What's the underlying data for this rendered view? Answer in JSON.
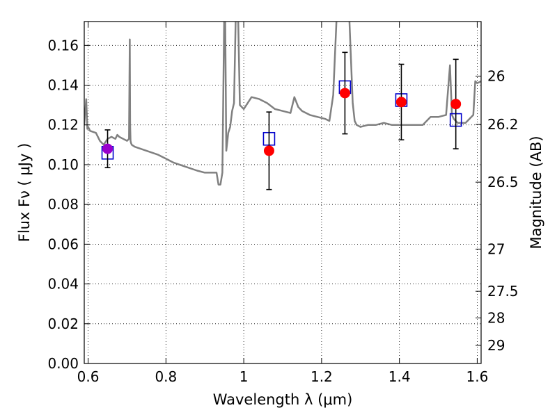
{
  "chart_data": {
    "type": "scatter",
    "xlabel": "Wavelength  λ (μm)",
    "ylabel": "Flux  Fν  ( μJy )",
    "y2label": "Magnitude (AB)",
    "xlim": [
      0.59,
      1.61
    ],
    "ylim": [
      0.0,
      0.172
    ],
    "x_ticks": [
      0.6,
      0.8,
      1.0,
      1.2,
      1.4,
      1.6
    ],
    "x_tick_labels": [
      "0.6",
      "0.8",
      "1",
      "1.2",
      "1.4",
      "1.6"
    ],
    "y_ticks": [
      0.0,
      0.02,
      0.04,
      0.06,
      0.08,
      0.1,
      0.12,
      0.14,
      0.16
    ],
    "y_tick_labels": [
      "0.00",
      "0.02",
      "0.04",
      "0.06",
      "0.08",
      "0.10",
      "0.12",
      "0.14",
      "0.16"
    ],
    "y2_ticks": [
      26,
      26.2,
      26.5,
      27,
      27.5,
      28,
      29
    ],
    "y2_tick_labels": [
      "26",
      "26.2",
      "26.5",
      "27",
      "27.5",
      "28",
      "29"
    ],
    "grid": true,
    "colors": {
      "model": "#808080",
      "observed": "#ff0000",
      "synthetic": "#0000cc",
      "errorbar": "#000000",
      "overlap": "#9900cc"
    },
    "series": [
      {
        "style": "line",
        "x": [
          0.59,
          0.595,
          0.598,
          0.6,
          0.605,
          0.62,
          0.63,
          0.64,
          0.65,
          0.66,
          0.67,
          0.675,
          0.68,
          0.69,
          0.7,
          0.705,
          0.707,
          0.708,
          0.709,
          0.71,
          0.712,
          0.72,
          0.75,
          0.78,
          0.8,
          0.82,
          0.85,
          0.88,
          0.9,
          0.92,
          0.93,
          0.935,
          0.94,
          0.945,
          0.95,
          0.952,
          0.955,
          0.958,
          0.96,
          0.965,
          0.97,
          0.975,
          0.98,
          0.985,
          0.99,
          0.995,
          1.0,
          1.01,
          1.02,
          1.04,
          1.06,
          1.08,
          1.1,
          1.12,
          1.13,
          1.14,
          1.15,
          1.17,
          1.19,
          1.21,
          1.22,
          1.23,
          1.24,
          1.25,
          1.26,
          1.27,
          1.28,
          1.285,
          1.29,
          1.3,
          1.32,
          1.34,
          1.36,
          1.38,
          1.4,
          1.42,
          1.44,
          1.46,
          1.48,
          1.5,
          1.52,
          1.53,
          1.535,
          1.54,
          1.55,
          1.57,
          1.59,
          1.595,
          1.6,
          1.61
        ],
        "y": [
          0.12,
          0.133,
          0.118,
          0.119,
          0.117,
          0.116,
          0.112,
          0.11,
          0.113,
          0.114,
          0.113,
          0.115,
          0.114,
          0.113,
          0.112,
          0.113,
          0.163,
          0.12,
          0.112,
          0.111,
          0.11,
          0.109,
          0.107,
          0.105,
          0.103,
          0.101,
          0.099,
          0.097,
          0.096,
          0.096,
          0.096,
          0.09,
          0.09,
          0.096,
          0.18,
          0.18,
          0.107,
          0.112,
          0.116,
          0.119,
          0.127,
          0.131,
          0.18,
          0.18,
          0.13,
          0.129,
          0.128,
          0.131,
          0.134,
          0.133,
          0.131,
          0.128,
          0.127,
          0.126,
          0.134,
          0.129,
          0.127,
          0.125,
          0.124,
          0.123,
          0.122,
          0.135,
          0.18,
          0.18,
          0.18,
          0.18,
          0.131,
          0.122,
          0.12,
          0.119,
          0.12,
          0.12,
          0.121,
          0.12,
          0.12,
          0.12,
          0.12,
          0.12,
          0.124,
          0.124,
          0.125,
          0.15,
          0.125,
          0.123,
          0.121,
          0.121,
          0.125,
          0.142,
          0.141,
          0.142
        ]
      },
      {
        "style": "errorbar-points",
        "marker": "circle",
        "x": [
          0.65,
          1.065,
          1.26,
          1.405,
          1.545
        ],
        "y": [
          0.108,
          0.107,
          0.136,
          0.1315,
          0.1305
        ],
        "yerr": [
          0.0095,
          0.0195,
          0.0205,
          0.019,
          0.0225
        ]
      },
      {
        "style": "points",
        "marker": "open-square",
        "x": [
          0.65,
          1.065,
          1.26,
          1.405,
          1.545
        ],
        "y": [
          0.106,
          0.113,
          0.139,
          0.1325,
          0.1225
        ]
      }
    ]
  }
}
